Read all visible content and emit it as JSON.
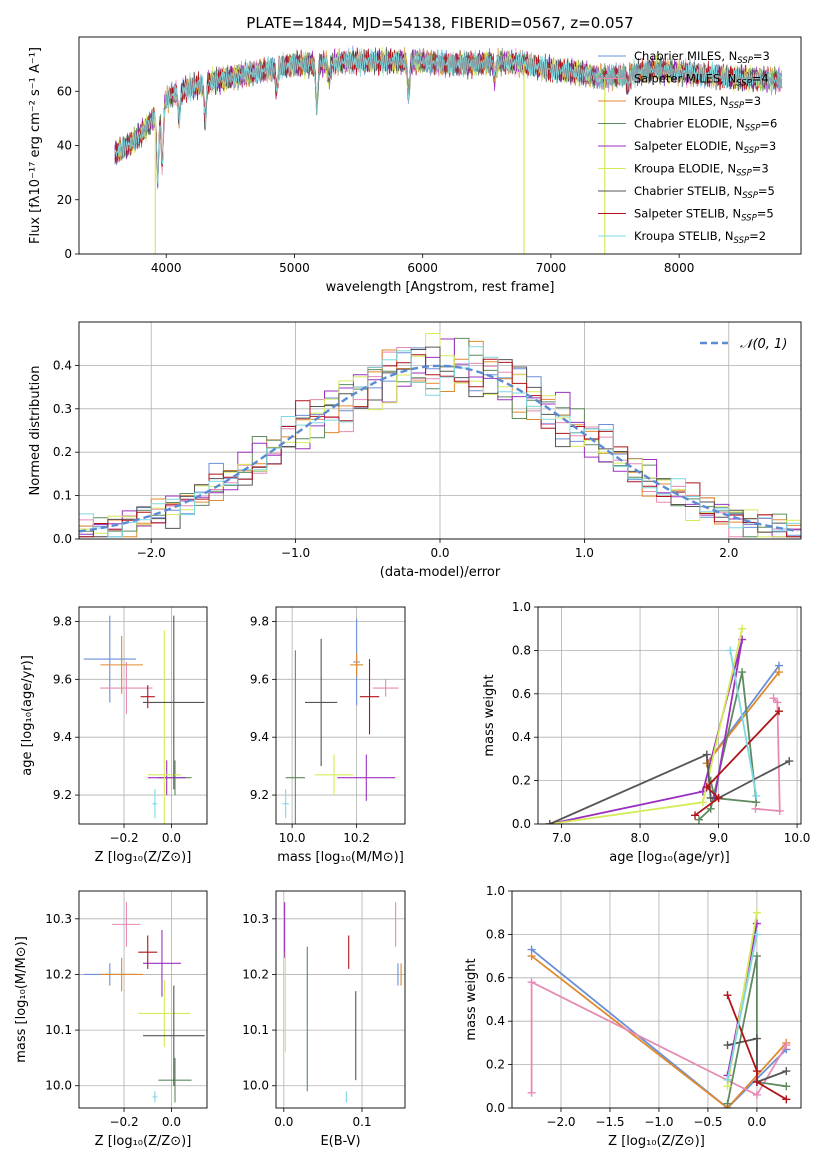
{
  "colors": {
    "Chabrier MILES": "#6a8fd8",
    "Salpeter MILES": "#e78ab5",
    "Kroupa MILES": "#e08a2e",
    "Chabrier ELODIE": "#5f8a5f",
    "Salpeter ELODIE": "#9b30c0",
    "Kroupa ELODIE": "#d7ea5a",
    "Chabrier STELIB": "#555555",
    "Salpeter STELIB": "#b0141a",
    "Kroupa STELIB": "#7fd8e0"
  },
  "chart_data": [
    {
      "id": "spectrum",
      "type": "line",
      "title": "PLATE=1844, MJD=54138, FIBERID=0567, z=0.057",
      "xlabel": "wavelength [Angstrom, rest frame]",
      "ylabel": "Flux [fλ10⁻¹⁷ erg cm⁻² s⁻¹ A⁻¹]",
      "xlim": [
        3320,
        8950
      ],
      "ylim": [
        0,
        80
      ],
      "xticks": [
        4000,
        5000,
        6000,
        7000,
        8000
      ],
      "yticks": [
        0,
        20,
        40,
        60
      ],
      "legend_position": "top-right",
      "series": [
        {
          "name": "Chabrier MILES, N",
          "sub": "SSP",
          "suffix": "=3"
        },
        {
          "name": "Salpeter MILES, N",
          "sub": "SSP",
          "suffix": "=4"
        },
        {
          "name": "Kroupa MILES, N",
          "sub": "SSP",
          "suffix": "=3"
        },
        {
          "name": "Chabrier ELODIE, N",
          "sub": "SSP",
          "suffix": "=6"
        },
        {
          "name": "Salpeter ELODIE, N",
          "sub": "SSP",
          "suffix": "=3"
        },
        {
          "name": "Kroupa ELODIE, N",
          "sub": "SSP",
          "suffix": "=3"
        },
        {
          "name": "Chabrier STELIB, N",
          "sub": "SSP",
          "suffix": "=5"
        },
        {
          "name": "Salpeter STELIB, N",
          "sub": "SSP",
          "suffix": "=5"
        },
        {
          "name": "Kroupa STELIB, N",
          "sub": "SSP",
          "suffix": "=2"
        }
      ],
      "continuum": [
        [
          3600,
          37
        ],
        [
          3700,
          40
        ],
        [
          3800,
          44
        ],
        [
          3900,
          50
        ],
        [
          4000,
          57
        ],
        [
          4100,
          60
        ],
        [
          4300,
          63
        ],
        [
          4500,
          65
        ],
        [
          4700,
          67
        ],
        [
          4900,
          69
        ],
        [
          5000,
          70
        ],
        [
          5200,
          70
        ],
        [
          5400,
          71
        ],
        [
          5600,
          71
        ],
        [
          5800,
          71
        ],
        [
          6000,
          71
        ],
        [
          6200,
          70
        ],
        [
          6400,
          70
        ],
        [
          6600,
          71
        ],
        [
          6800,
          70
        ],
        [
          7000,
          68
        ],
        [
          7200,
          67
        ],
        [
          7400,
          65
        ],
        [
          7600,
          66
        ],
        [
          7800,
          68
        ],
        [
          8000,
          67
        ],
        [
          8200,
          66
        ],
        [
          8400,
          65
        ],
        [
          8800,
          64
        ]
      ],
      "absorption": [
        [
          3934,
          25
        ],
        [
          3969,
          22
        ],
        [
          4101,
          10
        ],
        [
          4304,
          14
        ],
        [
          4861,
          8
        ],
        [
          5175,
          16
        ],
        [
          5270,
          6
        ],
        [
          5890,
          12
        ],
        [
          6563,
          6
        ],
        [
          7600,
          4
        ]
      ],
      "spikes": [
        [
          3915,
          0
        ],
        [
          6790,
          0
        ],
        [
          7420,
          0
        ]
      ]
    },
    {
      "id": "residuals",
      "type": "line",
      "xlabel": "(data-model)/error",
      "ylabel": "Normed distribution",
      "xlim": [
        -2.5,
        2.5
      ],
      "ylim": [
        0,
        0.5
      ],
      "xticks": [
        -2,
        -1,
        0,
        1,
        2
      ],
      "yticks": [
        0.0,
        0.1,
        0.2,
        0.3,
        0.4
      ],
      "legend_position": "top-right",
      "reference_label": "𝒩(0, 1)"
    },
    {
      "id": "age_vs_Z",
      "type": "scatter",
      "xlabel": "Z [log₁₀(Z/Z⊙)]",
      "ylabel": "age  [log₁₀(age/yr)]",
      "xlim": [
        -0.39,
        0.15
      ],
      "ylim": [
        9.1,
        9.85
      ],
      "xticks": [
        -0.2,
        0.0
      ],
      "yticks": [
        9.2,
        9.4,
        9.6,
        9.8
      ],
      "points": [
        {
          "model": "Chabrier MILES",
          "x": -0.26,
          "y": 9.67,
          "xerr": 0.11,
          "yerr": 0.15
        },
        {
          "model": "Salpeter MILES",
          "x": -0.19,
          "y": 9.57,
          "xerr": 0.11,
          "yerr": 0.09
        },
        {
          "model": "Kroupa MILES",
          "x": -0.21,
          "y": 9.65,
          "xerr": 0.09,
          "yerr": 0.1
        },
        {
          "model": "Chabrier ELODIE",
          "x": 0.015,
          "y": 9.26,
          "xerr": 0.07,
          "yerr": 0.06
        },
        {
          "model": "Salpeter ELODIE",
          "x": -0.02,
          "y": 9.26,
          "xerr": 0.08,
          "yerr": 0.06
        },
        {
          "model": "Kroupa ELODIE",
          "x": -0.03,
          "y": 9.27,
          "xerr": 0.07,
          "yerr": 0.5
        },
        {
          "model": "Chabrier STELIB",
          "x": 0.01,
          "y": 9.52,
          "xerr": 0.13,
          "yerr": 0.3
        },
        {
          "model": "Salpeter STELIB",
          "x": -0.1,
          "y": 9.54,
          "xerr": 0.03,
          "yerr": 0.04
        },
        {
          "model": "Kroupa STELIB",
          "x": -0.07,
          "y": 9.17,
          "xerr": 0.01,
          "yerr": 0.05
        }
      ]
    },
    {
      "id": "age_vs_mass",
      "type": "scatter",
      "xlabel": "mass [log₁₀(M/M⊙)]",
      "ylabel": "",
      "xlim": [
        9.95,
        10.35
      ],
      "ylim": [
        9.1,
        9.85
      ],
      "xticks": [
        10.0,
        10.2
      ],
      "yticks": [
        9.2,
        9.4,
        9.6,
        9.8
      ],
      "points": [
        {
          "model": "Chabrier MILES",
          "x": 10.2,
          "y": 9.66,
          "xerr": 0.01,
          "yerr": 0.15
        },
        {
          "model": "Salpeter MILES",
          "x": 10.29,
          "y": 9.57,
          "xerr": 0.04,
          "yerr": 0.03
        },
        {
          "model": "Kroupa MILES",
          "x": 10.2,
          "y": 9.65,
          "xerr": 0.02,
          "yerr": 0.04
        },
        {
          "model": "Chabrier ELODIE",
          "x": 10.01,
          "y": 9.26,
          "xerr": 0.03,
          "yerr": 0.44
        },
        {
          "model": "Salpeter ELODIE",
          "x": 10.23,
          "y": 9.26,
          "xerr": 0.09,
          "yerr": 0.08
        },
        {
          "model": "Kroupa ELODIE",
          "x": 10.13,
          "y": 9.27,
          "xerr": 0.06,
          "yerr": 0.07
        },
        {
          "model": "Chabrier STELIB",
          "x": 10.09,
          "y": 9.52,
          "xerr": 0.05,
          "yerr": 0.22
        },
        {
          "model": "Salpeter STELIB",
          "x": 10.24,
          "y": 9.54,
          "xerr": 0.03,
          "yerr": 0.13
        },
        {
          "model": "Kroupa STELIB",
          "x": 9.98,
          "y": 9.17,
          "xerr": 0.01,
          "yerr": 0.05
        }
      ]
    },
    {
      "id": "mass_weight_vs_age",
      "type": "line",
      "xlabel": "age  [log₁₀(age/yr)]",
      "ylabel": "mass weight",
      "xlim": [
        6.7,
        10.05
      ],
      "ylim": [
        0,
        1.0
      ],
      "xticks": [
        7,
        8,
        9,
        10
      ],
      "yticks": [
        0.0,
        0.2,
        0.4,
        0.6,
        0.8,
        1.0
      ],
      "series": [
        {
          "model": "Chabrier MILES",
          "x": [
            8.85,
            9.77
          ],
          "y": [
            0.28,
            0.73
          ]
        },
        {
          "model": "Kroupa MILES",
          "x": [
            8.85,
            9.77
          ],
          "y": [
            0.28,
            0.7
          ]
        },
        {
          "model": "Salpeter MILES",
          "x": [
            9.7,
            9.75,
            9.78,
            9.47
          ],
          "y": [
            0.58,
            0.56,
            0.06,
            0.07
          ]
        },
        {
          "model": "Chabrier ELODIE",
          "x": [
            8.75,
            8.9,
            9.3,
            9.48,
            8.95,
            8.9
          ],
          "y": [
            0.02,
            0.07,
            0.7,
            0.1,
            0.12,
            0.2
          ]
        },
        {
          "model": "Salpeter ELODIE",
          "x": [
            6.85,
            8.8,
            9.3,
            8.95
          ],
          "y": [
            0.0,
            0.15,
            0.85,
            0.12
          ]
        },
        {
          "model": "Kroupa ELODIE",
          "x": [
            6.85,
            8.8,
            9.3
          ],
          "y": [
            0.0,
            0.1,
            0.9
          ]
        },
        {
          "model": "Chabrier STELIB",
          "x": [
            6.85,
            8.85,
            8.9,
            9.0,
            9.9
          ],
          "y": [
            0.0,
            0.32,
            0.12,
            0.12,
            0.29
          ]
        },
        {
          "model": "Salpeter STELIB",
          "x": [
            8.7,
            9.0,
            8.85,
            9.77
          ],
          "y": [
            0.04,
            0.12,
            0.17,
            0.52
          ]
        },
        {
          "model": "Kroupa STELIB",
          "x": [
            9.15,
            9.48
          ],
          "y": [
            0.8,
            0.13
          ]
        }
      ]
    },
    {
      "id": "mass_vs_Z",
      "type": "scatter",
      "xlabel": "Z [log₁₀(Z/Z⊙)]",
      "ylabel": "mass [log₁₀(M/M⊙)]",
      "xlim": [
        -0.39,
        0.15
      ],
      "ylim": [
        9.96,
        10.35
      ],
      "xticks": [
        -0.2,
        0.0
      ],
      "yticks": [
        10.0,
        10.1,
        10.2,
        10.3
      ],
      "points": [
        {
          "model": "Chabrier MILES",
          "x": -0.26,
          "y": 10.2,
          "xerr": 0.11,
          "yerr": 0.02
        },
        {
          "model": "Salpeter MILES",
          "x": -0.19,
          "y": 10.29,
          "xerr": 0.06,
          "yerr": 0.04
        },
        {
          "model": "Kroupa MILES",
          "x": -0.21,
          "y": 10.2,
          "xerr": 0.09,
          "yerr": 0.03
        },
        {
          "model": "Chabrier ELODIE",
          "x": 0.015,
          "y": 10.01,
          "xerr": 0.07,
          "yerr": 0.04
        },
        {
          "model": "Salpeter ELODIE",
          "x": -0.04,
          "y": 10.22,
          "xerr": 0.08,
          "yerr": 0.06
        },
        {
          "model": "Kroupa ELODIE",
          "x": -0.03,
          "y": 10.13,
          "xerr": 0.11,
          "yerr": 0.06
        },
        {
          "model": "Chabrier STELIB",
          "x": 0.01,
          "y": 10.09,
          "xerr": 0.13,
          "yerr": 0.09
        },
        {
          "model": "Salpeter STELIB",
          "x": -0.1,
          "y": 10.24,
          "xerr": 0.04,
          "yerr": 0.03
        },
        {
          "model": "Kroupa STELIB",
          "x": -0.07,
          "y": 9.98,
          "xerr": 0.01,
          "yerr": 0.01
        }
      ]
    },
    {
      "id": "mass_vs_ebv",
      "type": "scatter",
      "xlabel": "E(B-V)",
      "ylabel": "",
      "xlim": [
        -0.01,
        0.155
      ],
      "ylim": [
        9.96,
        10.35
      ],
      "xticks": [
        0.0,
        0.1
      ],
      "yticks": [
        10.0,
        10.1,
        10.2,
        10.3
      ],
      "points": [
        {
          "model": "Chabrier MILES",
          "x": 0.146,
          "y": 10.2,
          "xerr": 0.0,
          "yerr": 0.02
        },
        {
          "model": "Salpeter MILES",
          "x": 0.143,
          "y": 10.29,
          "xerr": 0.0,
          "yerr": 0.04
        },
        {
          "model": "Kroupa MILES",
          "x": 0.15,
          "y": 10.2,
          "xerr": 0.0,
          "yerr": 0.02
        },
        {
          "model": "Chabrier ELODIE",
          "x": 0.03,
          "y": 10.12,
          "xerr": 0.0,
          "yerr": 0.13
        },
        {
          "model": "Salpeter ELODIE",
          "x": 0.001,
          "y": 10.28,
          "xerr": 0.0,
          "yerr": 0.05
        },
        {
          "model": "Kroupa ELODIE",
          "x": 0.002,
          "y": 10.15,
          "xerr": 0.0,
          "yerr": 0.09
        },
        {
          "model": "Chabrier STELIB",
          "x": 0.092,
          "y": 10.09,
          "xerr": 0.0,
          "yerr": 0.08
        },
        {
          "model": "Salpeter STELIB",
          "x": 0.083,
          "y": 10.24,
          "xerr": 0.0,
          "yerr": 0.03
        },
        {
          "model": "Kroupa STELIB",
          "x": 0.08,
          "y": 9.98,
          "xerr": 0.0,
          "yerr": 0.01
        }
      ]
    },
    {
      "id": "mass_weight_vs_Z",
      "type": "line",
      "xlabel": "Z [log₁₀(Z/Z⊙)]",
      "ylabel": "mass weight",
      "xlim": [
        -2.5,
        0.45
      ],
      "ylim": [
        0,
        1.0
      ],
      "xticks": [
        -2.0,
        -1.5,
        -1.0,
        -0.5,
        0.0
      ],
      "yticks": [
        0.0,
        0.2,
        0.4,
        0.6,
        0.8,
        1.0
      ],
      "series": [
        {
          "model": "Chabrier MILES",
          "x": [
            -2.3,
            -0.3,
            0.3
          ],
          "y": [
            0.73,
            0.0,
            0.27
          ]
        },
        {
          "model": "Kroupa MILES",
          "x": [
            -2.3,
            -0.3,
            0.3
          ],
          "y": [
            0.7,
            0.0,
            0.3
          ]
        },
        {
          "model": "Salpeter MILES",
          "x": [
            -2.3,
            -2.3,
            0.0,
            0.3
          ],
          "y": [
            0.07,
            0.58,
            0.06,
            0.29
          ]
        },
        {
          "model": "Chabrier ELODIE",
          "x": [
            -0.3,
            0.0,
            0.0,
            0.3
          ],
          "y": [
            0.02,
            0.7,
            0.12,
            0.1
          ]
        },
        {
          "model": "Salpeter ELODIE",
          "x": [
            -0.3,
            0.0
          ],
          "y": [
            0.15,
            0.85
          ]
        },
        {
          "model": "Kroupa ELODIE",
          "x": [
            -0.3,
            0.0
          ],
          "y": [
            0.1,
            0.9
          ]
        },
        {
          "model": "Chabrier STELIB",
          "x": [
            -0.3,
            0.0,
            0.0,
            0.3
          ],
          "y": [
            0.29,
            0.32,
            0.12,
            0.17
          ]
        },
        {
          "model": "Salpeter STELIB",
          "x": [
            -0.3,
            0.0,
            0.0,
            0.3
          ],
          "y": [
            0.52,
            0.17,
            0.12,
            0.04
          ]
        },
        {
          "model": "Kroupa STELIB",
          "x": [
            -0.3,
            0.0
          ],
          "y": [
            0.13,
            0.8
          ]
        }
      ]
    }
  ]
}
